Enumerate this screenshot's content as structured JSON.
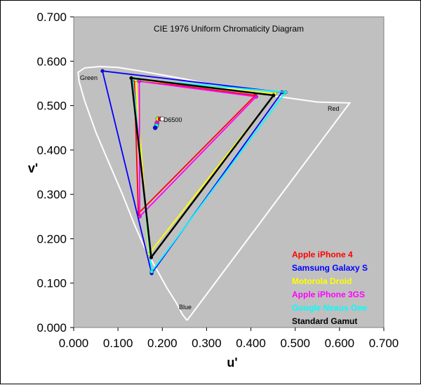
{
  "chart_data": {
    "type": "scatter",
    "title": "CIE 1976 Uniform Chromaticity Diagram",
    "xlabel": "u'",
    "ylabel": "v'",
    "xlim": [
      0.0,
      0.7
    ],
    "ylim": [
      0.0,
      0.7
    ],
    "x_ticks": [
      "0.000",
      "0.100",
      "0.200",
      "0.300",
      "0.400",
      "0.500",
      "0.600",
      "0.700"
    ],
    "y_ticks": [
      "0.000",
      "0.100",
      "0.200",
      "0.300",
      "0.400",
      "0.500",
      "0.600",
      "0.700"
    ],
    "grid": false,
    "legend_position": "bottom-right",
    "colors": {
      "plot_background": "#c0c0c0",
      "locus": "#ffffff"
    },
    "region_labels": [
      "Green",
      "Red",
      "Blue"
    ],
    "white_point_label": "D6500",
    "locus": [
      [
        0.256,
        0.016
      ],
      [
        0.245,
        0.03
      ],
      [
        0.232,
        0.055
      ],
      [
        0.21,
        0.09
      ],
      [
        0.185,
        0.135
      ],
      [
        0.16,
        0.18
      ],
      [
        0.138,
        0.23
      ],
      [
        0.11,
        0.3
      ],
      [
        0.08,
        0.37
      ],
      [
        0.05,
        0.44
      ],
      [
        0.025,
        0.51
      ],
      [
        0.012,
        0.555
      ],
      [
        0.01,
        0.575
      ],
      [
        0.025,
        0.585
      ],
      [
        0.06,
        0.588
      ],
      [
        0.1,
        0.586
      ],
      [
        0.15,
        0.578
      ],
      [
        0.25,
        0.56
      ],
      [
        0.35,
        0.54
      ],
      [
        0.45,
        0.522
      ],
      [
        0.55,
        0.508
      ],
      [
        0.623,
        0.506
      ]
    ],
    "series": [
      {
        "name": "Apple iPhone 4",
        "color": "#ff0000",
        "x": [
          0.41,
          0.146,
          0.137
        ],
        "y": [
          0.523,
          0.257,
          0.558
        ]
      },
      {
        "name": "Samsung Galaxy S",
        "color": "#0000ff",
        "x": [
          0.47,
          0.176,
          0.065
        ],
        "y": [
          0.53,
          0.122,
          0.578
        ]
      },
      {
        "name": "Motorola Droid",
        "color": "#ffff00",
        "x": [
          0.455,
          0.17,
          0.14
        ],
        "y": [
          0.527,
          0.166,
          0.558
        ]
      },
      {
        "name": "Apple iPhone 3GS",
        "color": "#ff00ff",
        "x": [
          0.412,
          0.149,
          0.148
        ],
        "y": [
          0.52,
          0.25,
          0.555
        ]
      },
      {
        "name": "Google Nexus One",
        "color": "#00ffff",
        "x": [
          0.478,
          0.176,
          0.133
        ],
        "y": [
          0.53,
          0.126,
          0.56
        ]
      },
      {
        "name": "Standard Gamut",
        "color": "#000000",
        "x": [
          0.451,
          0.175,
          0.13
        ],
        "y": [
          0.523,
          0.158,
          0.562
        ]
      }
    ],
    "white_points": [
      {
        "x": 0.19,
        "y": 0.47,
        "color": "#ffff00"
      },
      {
        "x": 0.195,
        "y": 0.47,
        "color": "#ff0000"
      },
      {
        "x": 0.2,
        "y": 0.47,
        "color": "#ffffff"
      },
      {
        "x": 0.188,
        "y": 0.461,
        "color": "#ff00ff"
      },
      {
        "x": 0.187,
        "y": 0.455,
        "color": "#00ffff"
      },
      {
        "x": 0.184,
        "y": 0.45,
        "color": "#0000ff"
      }
    ]
  }
}
